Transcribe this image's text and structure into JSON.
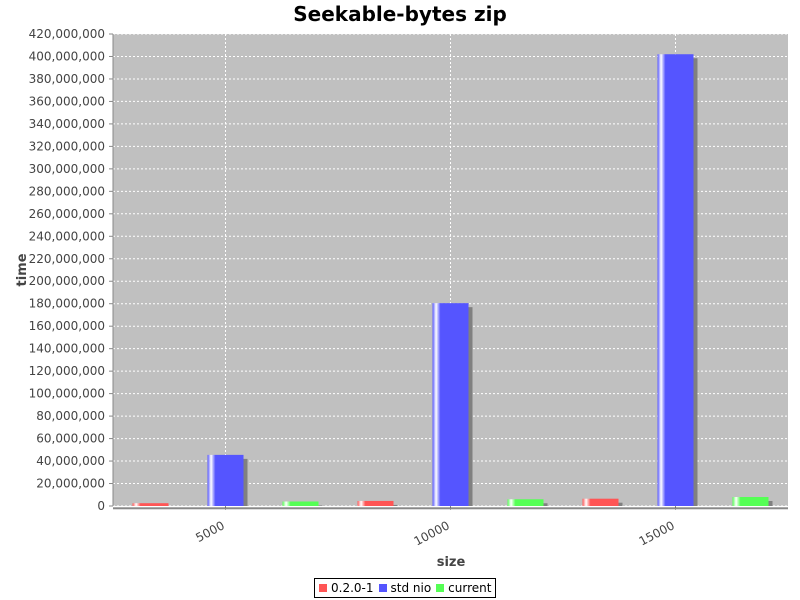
{
  "chart_data": {
    "type": "bar",
    "title": "Seekable-bytes zip",
    "xlabel": "size",
    "ylabel": "time",
    "categories": [
      "5000",
      "10000",
      "15000"
    ],
    "series": [
      {
        "name": "0.2.0-1",
        "color": "#ff5555",
        "values": [
          2500000,
          4500000,
          6500000
        ]
      },
      {
        "name": "std nio",
        "color": "#5555ff",
        "values": [
          45500000,
          180500000,
          402000000
        ]
      },
      {
        "name": "current",
        "color": "#55ff55",
        "values": [
          4000000,
          6000000,
          8000000
        ]
      }
    ],
    "ylim": [
      0,
      420000000
    ],
    "ytick_step": 20000000,
    "grid": true,
    "legend_position": "bottom"
  }
}
